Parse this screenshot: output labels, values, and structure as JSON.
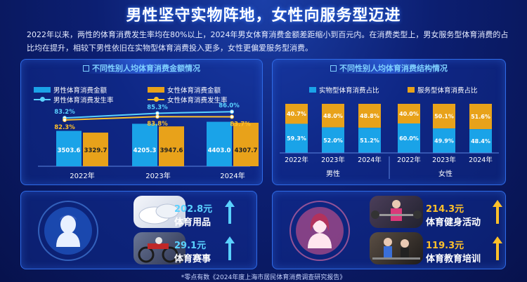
{
  "header": {
    "title": "男性坚守实物阵地，女性向服务型迈进",
    "intro": "2022年以来，两性的体育消费发生率均在80%以上，2024年男女体育消费金额差距缩小到百元内。在消费类型上，男女服务型体育消费的占比均在提升，相较下男性依旧在实物型体育消费投入更多，女性更偏爱服务型消费。"
  },
  "colors": {
    "male": "#1aa3e8",
    "female": "#e8a21a",
    "male_line": "#5ad1ff",
    "female_line": "#ffc02a"
  },
  "chart_data": [
    {
      "type": "bar",
      "title": "不同性别人均体育消费金额情况",
      "categories": [
        "2022年",
        "2023年",
        "2024年"
      ],
      "series": [
        {
          "name": "男性体育消费金额",
          "values": [
            3503.6,
            4205.3,
            4403.0
          ]
        },
        {
          "name": "女性体育消费金额",
          "values": [
            3329.7,
            3947.6,
            4307.7
          ]
        }
      ],
      "lines": [
        {
          "name": "男性体育消费发生率",
          "values": [
            "83.2%",
            "85.3%",
            "86.0%"
          ]
        },
        {
          "name": "女性体育消费发生率",
          "values": [
            "82.3%",
            "83.8%",
            "83.7%"
          ]
        }
      ],
      "ylim": [
        0,
        5000
      ]
    },
    {
      "type": "bar",
      "stacked": true,
      "title": "不同性别人均体育消费结构情况",
      "categories": [
        "2022年",
        "2023年",
        "2024年",
        "2022年",
        "2023年",
        "2024年"
      ],
      "groups": [
        "男性",
        "女性"
      ],
      "series": [
        {
          "name": "实物型体育消费占比",
          "values": [
            "59.3%",
            "52.0%",
            "51.2%",
            "60.0%",
            "49.9%",
            "48.4%"
          ]
        },
        {
          "name": "服务型体育消费占比",
          "values": [
            "40.7%",
            "48.0%",
            "48.8%",
            "40.0%",
            "50.1%",
            "51.6%"
          ]
        }
      ],
      "ylim": [
        0,
        100
      ]
    }
  ],
  "male_items": [
    {
      "value": "202.8元",
      "label": "体育用品"
    },
    {
      "value": "29.1元",
      "label": "体育赛事"
    }
  ],
  "female_items": [
    {
      "value": "214.3元",
      "label": "体育健身活动"
    },
    {
      "value": "119.3元",
      "label": "体育教育培训"
    }
  ],
  "source": "*零点有数《2024年度上海市居民体育消费调查研究报告》"
}
